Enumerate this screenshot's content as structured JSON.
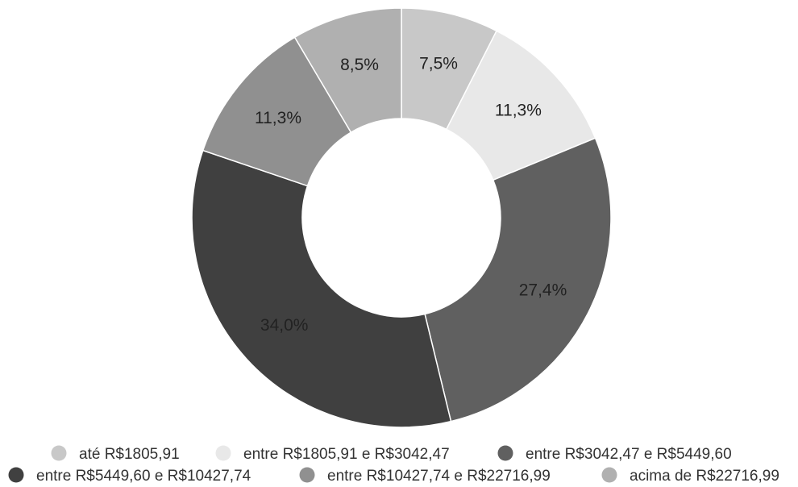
{
  "chart_data": {
    "type": "pie",
    "donut": true,
    "slices": [
      {
        "label": "até R$1805,91",
        "value": 7.5,
        "display": "7,5%",
        "color": "#c8c8c8"
      },
      {
        "label": "entre R$1805,91 e R$3042,47",
        "value": 11.3,
        "display": "11,3%",
        "color": "#e8e8e8"
      },
      {
        "label": "entre R$3042,47 e R$5449,60",
        "value": 27.4,
        "display": "27,4%",
        "color": "#606060"
      },
      {
        "label": "entre R$5449,60 e R$10427,74",
        "value": 34.0,
        "display": "34,0%",
        "color": "#404040"
      },
      {
        "label": "entre R$10427,74 e R$22716,99",
        "value": 11.3,
        "display": "11,3%",
        "color": "#909090"
      },
      {
        "label": "acima de R$22716,99",
        "value": 8.5,
        "display": "8,5%",
        "color": "#b0b0b0"
      }
    ],
    "legend_position": "bottom"
  }
}
